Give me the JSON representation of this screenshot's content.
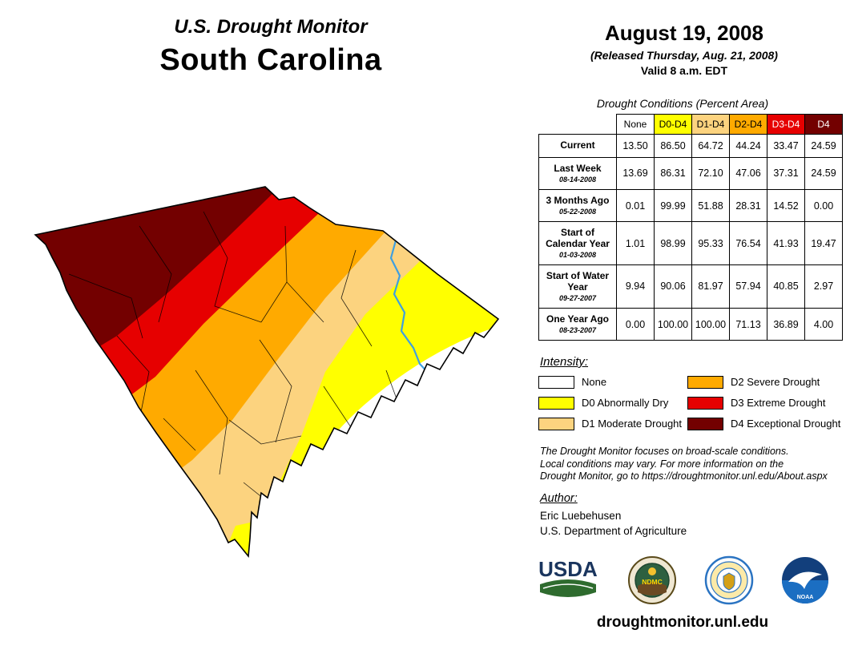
{
  "header": {
    "title_line1": "U.S. Drought Monitor",
    "title_line2": "South Carolina",
    "date": "August 19, 2008",
    "released": "(Released Thursday, Aug. 21, 2008)",
    "valid": "Valid 8 a.m. EDT"
  },
  "table": {
    "caption": "Drought Conditions (Percent Area)",
    "columns": [
      "None",
      "D0-D4",
      "D1-D4",
      "D2-D4",
      "D3-D4",
      "D4"
    ],
    "column_colors": [
      "#ffffff",
      "#ffff00",
      "#fcd37f",
      "#ffaa00",
      "#e60000",
      "#730000"
    ],
    "column_text_colors": [
      "#000000",
      "#000000",
      "#000000",
      "#000000",
      "#ffffff",
      "#ffffff"
    ],
    "rows": [
      {
        "label": "Current",
        "date": "",
        "values": [
          "13.50",
          "86.50",
          "64.72",
          "44.24",
          "33.47",
          "24.59"
        ]
      },
      {
        "label": "Last Week",
        "date": "08-14-2008",
        "values": [
          "13.69",
          "86.31",
          "72.10",
          "47.06",
          "37.31",
          "24.59"
        ]
      },
      {
        "label": "3 Months Ago",
        "date": "05-22-2008",
        "values": [
          "0.01",
          "99.99",
          "51.88",
          "28.31",
          "14.52",
          "0.00"
        ]
      },
      {
        "label": "Start of Calendar Year",
        "date": "01-03-2008",
        "values": [
          "1.01",
          "98.99",
          "95.33",
          "76.54",
          "41.93",
          "19.47"
        ]
      },
      {
        "label": "Start of Water Year",
        "date": "09-27-2007",
        "values": [
          "9.94",
          "90.06",
          "81.97",
          "57.94",
          "40.85",
          "2.97"
        ]
      },
      {
        "label": "One Year Ago",
        "date": "08-23-2007",
        "values": [
          "0.00",
          "100.00",
          "100.00",
          "71.13",
          "36.89",
          "4.00"
        ]
      }
    ]
  },
  "legend": {
    "title": "Intensity:",
    "items": [
      {
        "label": "None",
        "color": "#ffffff"
      },
      {
        "label": "D0 Abnormally Dry",
        "color": "#ffff00"
      },
      {
        "label": "D1 Moderate Drought",
        "color": "#fcd37f"
      },
      {
        "label": "D2 Severe Drought",
        "color": "#ffaa00"
      },
      {
        "label": "D3 Extreme Drought",
        "color": "#e60000"
      },
      {
        "label": "D4 Exceptional Drought",
        "color": "#730000"
      }
    ]
  },
  "disclaimer": {
    "lines": [
      "The Drought Monitor focuses on broad-scale conditions.",
      "Local conditions may vary. For more information on the",
      "Drought Monitor, go to https://droughtmonitor.unl.edu/About.aspx"
    ]
  },
  "author": {
    "title": "Author:",
    "name": "Eric Luebehusen",
    "org": "U.S. Department of Agriculture"
  },
  "logos": {
    "usda_label": "USDA",
    "ndmc_label": "NDMC",
    "noaa_label": "NOAA"
  },
  "footer": {
    "url": "droughtmonitor.unl.edu"
  },
  "map": {
    "region_label": "South Carolina drought map",
    "colors": {
      "none": "#ffffff",
      "d0": "#ffff00",
      "d1": "#fcd37f",
      "d2": "#ffaa00",
      "d3": "#e60000",
      "d4": "#730000"
    },
    "river_color": "#3f9fe0",
    "outline_color": "#000000"
  }
}
